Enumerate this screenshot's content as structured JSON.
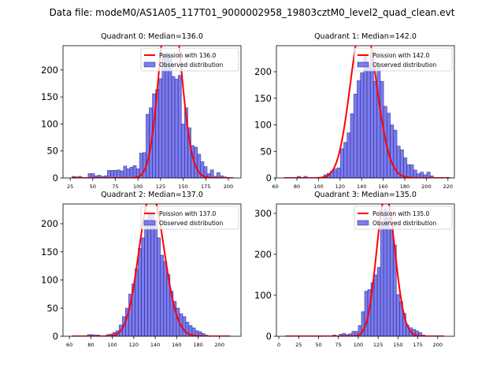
{
  "figure": {
    "suptitle": "Data file: modeM0/AS1A05_117T01_9000002958_19803cztM0_level2_quad_clean.evt"
  },
  "colors": {
    "bar_fill": "#7b7bf2",
    "bar_edge": "#1e1e6e",
    "poisson": "#ff0000"
  },
  "chart_data": [
    {
      "type": "bar",
      "title": "Quadrant 0: Median=136.0",
      "legend": [
        "Poission with 136.0",
        "Observed distribution"
      ],
      "legend_position": "top-right",
      "poisson_mean": 136.0,
      "xlim": [
        17,
        214
      ],
      "ylim": [
        0,
        245
      ],
      "xticks": [
        25,
        50,
        75,
        100,
        125,
        150,
        175,
        200
      ],
      "yticks": [
        0,
        50,
        100,
        150,
        200
      ],
      "bin_start": 27,
      "bin_end": 205,
      "values": [
        3,
        2,
        3,
        1,
        1,
        8,
        8,
        4,
        5,
        3,
        4,
        14,
        14,
        14,
        15,
        13,
        22,
        17,
        20,
        23,
        17,
        46,
        47,
        118,
        130,
        156,
        164,
        184,
        228,
        229,
        227,
        188,
        183,
        190,
        100,
        130,
        93,
        60,
        57,
        44,
        30,
        21,
        8,
        15,
        3,
        10,
        4,
        2,
        1,
        1
      ]
    },
    {
      "type": "bar",
      "title": "Quadrant 1: Median=142.0",
      "legend": [
        "Poission with 142.0",
        "Observed distribution"
      ],
      "legend_position": "top-right",
      "poisson_mean": 142.0,
      "xlim": [
        61,
        226
      ],
      "ylim": [
        0,
        249
      ],
      "xticks": [
        60,
        80,
        100,
        120,
        140,
        160,
        180,
        200,
        220
      ],
      "yticks": [
        0,
        50,
        100,
        150,
        200
      ],
      "bin_start": 68,
      "bin_end": 222,
      "values": [
        0,
        0,
        0,
        0,
        3,
        1,
        3,
        0,
        0,
        0,
        0,
        0,
        6,
        9,
        13,
        17,
        19,
        55,
        67,
        85,
        121,
        158,
        183,
        198,
        230,
        212,
        236,
        182,
        208,
        182,
        135,
        122,
        100,
        90,
        60,
        53,
        38,
        25,
        25,
        15,
        8,
        11,
        6,
        11,
        4,
        0,
        0,
        0,
        0,
        1
      ]
    },
    {
      "type": "bar",
      "title": "Quadrant 2: Median=137.0",
      "legend": [
        "Poission with 137.0",
        "Observed distribution"
      ],
      "legend_position": "top-right",
      "poisson_mean": 137.0,
      "xlim": [
        54,
        220
      ],
      "ylim": [
        0,
        235
      ],
      "xticks": [
        60,
        80,
        100,
        120,
        140,
        160,
        180,
        200
      ],
      "yticks": [
        0,
        50,
        100,
        150,
        200
      ],
      "bin_start": 62,
      "bin_end": 210,
      "values": [
        0,
        0,
        0,
        0,
        0,
        3,
        3,
        2,
        2,
        0,
        1,
        3,
        4,
        7,
        10,
        20,
        35,
        50,
        75,
        93,
        120,
        156,
        175,
        207,
        216,
        218,
        205,
        175,
        144,
        133,
        110,
        80,
        62,
        50,
        40,
        35,
        25,
        19,
        15,
        10,
        8,
        5,
        2,
        0,
        0,
        0,
        0,
        0,
        0,
        0
      ]
    },
    {
      "type": "bar",
      "title": "Quadrant 3: Median=135.0",
      "legend": [
        "Poission with 135.0",
        "Observed distribution"
      ],
      "legend_position": "top-right",
      "poisson_mean": 135.0,
      "xlim": [
        -3,
        221
      ],
      "ylim": [
        0,
        323
      ],
      "xticks": [
        0,
        25,
        50,
        75,
        100,
        125,
        150,
        175,
        200
      ],
      "yticks": [
        0,
        100,
        200,
        300
      ],
      "bin_start": 8,
      "bin_end": 208,
      "values": [
        0,
        0,
        0,
        0,
        0,
        0,
        0,
        0,
        0,
        0,
        0,
        0,
        0,
        0,
        1,
        3,
        1,
        5,
        7,
        4,
        6,
        12,
        12,
        26,
        60,
        110,
        114,
        131,
        150,
        168,
        270,
        310,
        290,
        262,
        223,
        102,
        85,
        56,
        27,
        21,
        17,
        13,
        9,
        3,
        0,
        0,
        0,
        0,
        0,
        0
      ]
    }
  ]
}
